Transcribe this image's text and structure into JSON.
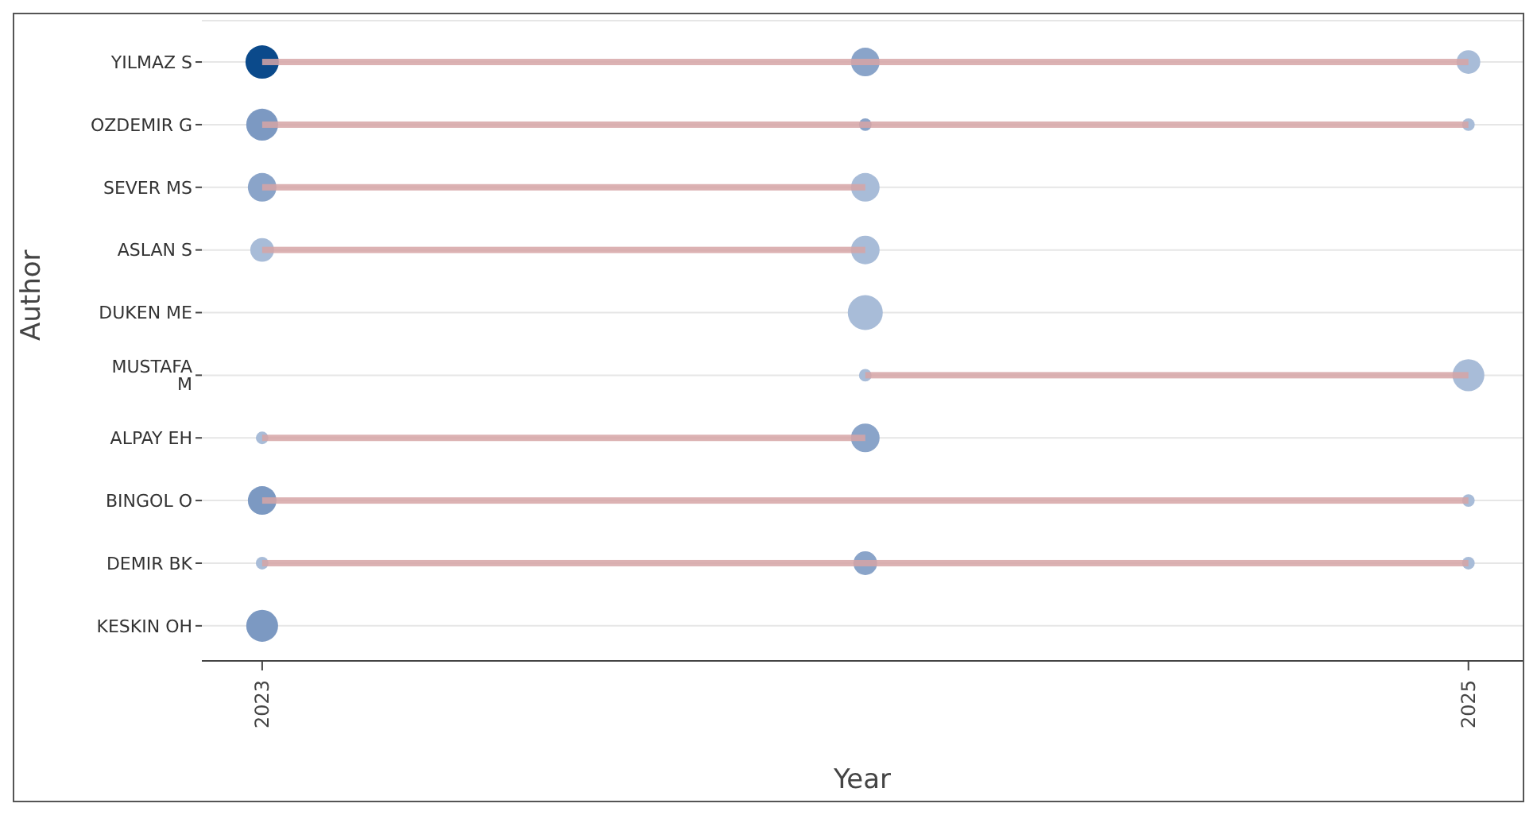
{
  "chart_data": {
    "type": "bubble",
    "orientation": "horizontal",
    "xlabel": "Year",
    "ylabel": "Author",
    "categories": [
      "YILMAZ S",
      "OZDEMIR G",
      "SEVER MS",
      "ASLAN S",
      "DUKEN ME",
      "MUSTAFA M",
      "ALPAY EH",
      "BINGOL O",
      "DEMIR BK",
      "KESKIN OH"
    ],
    "xlim": [
      2022.9,
      2025.09
    ],
    "xticks": [
      2023,
      2025
    ],
    "grid": "y",
    "series": [
      {
        "values": [
          2023,
          2023,
          2023,
          2023,
          null,
          null,
          2023,
          2023,
          2023,
          2023
        ],
        "sizes": [
          0.91,
          0.83,
          0.67,
          0.46,
          null,
          null,
          0.13,
          0.67,
          0.13,
          0.83
        ],
        "colors": [
          "#0b4a8b",
          "#7c99c2",
          "#8aa4c9",
          "#a8bcd8",
          null,
          null,
          "#a8bcd8",
          "#7c99c2",
          "#a8bcd8",
          "#7c99c2"
        ]
      },
      {
        "values": [
          2024,
          2024,
          2024,
          2024,
          2024,
          2024,
          2024,
          null,
          2024,
          null
        ],
        "sizes": [
          0.67,
          0.13,
          0.67,
          0.67,
          1,
          0.13,
          0.67,
          null,
          0.46,
          null
        ],
        "colors": [
          "#8aa4c9",
          "#8aa4c9",
          "#a8bcd8",
          "#a8bcd8",
          "#a8bcd8",
          "#a8bcd8",
          "#8aa4c9",
          null,
          "#8aa4c9",
          null
        ]
      },
      {
        "values": [
          2025,
          2025,
          null,
          null,
          null,
          2025,
          null,
          2025,
          2025,
          null
        ],
        "sizes": [
          0.46,
          0.13,
          null,
          null,
          null,
          0.83,
          null,
          0.13,
          0.13,
          null
        ],
        "colors": [
          "#a8bcd8",
          "#a8bcd8",
          null,
          null,
          null,
          "#a8bcd8",
          null,
          "#a8bcd8",
          "#a8bcd8",
          null
        ]
      },
      {
        "type": "bar",
        "base": [
          2023,
          2023,
          2023,
          2023,
          null,
          2024,
          2023,
          2023,
          2023,
          null
        ],
        "values": [
          2,
          2,
          1,
          1,
          null,
          1,
          1,
          2,
          2,
          null
        ],
        "color": "#d6a4a6"
      }
    ]
  }
}
